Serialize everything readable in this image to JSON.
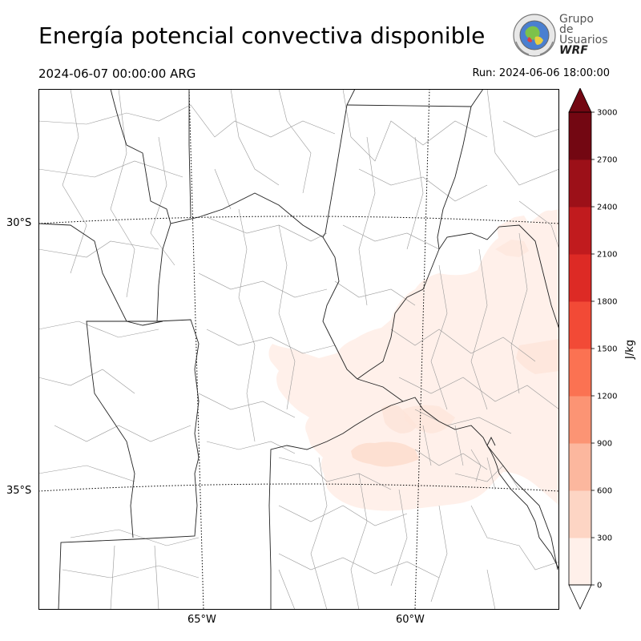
{
  "header": {
    "title": "Energía potencial convectiva disponible",
    "valid_time": "2024-06-07 00:00:00 ARG",
    "run_time": "Run: 2024-06-06 18:00:00"
  },
  "logo": {
    "line1": "Grupo de",
    "line2": "Usuarios",
    "line3": "WRF",
    "icon": "globe-emblem-icon"
  },
  "map": {
    "lat_labels": [
      "30°S",
      "35°S"
    ],
    "lon_labels": [
      "65°W",
      "60°W"
    ],
    "field": "CAPE",
    "colors": {
      "province_border": "#333333",
      "department_border": "#999999",
      "graticule": "#000000"
    }
  },
  "colorbar": {
    "unit": "J/kg",
    "ticks": [
      "0",
      "300",
      "600",
      "900",
      "1200",
      "1500",
      "1800",
      "2100",
      "2400",
      "2700",
      "3000"
    ],
    "colors": [
      "#fff0ea",
      "#fdd5c4",
      "#fcb79e",
      "#fc9474",
      "#fb7252",
      "#f24a36",
      "#dd2a25",
      "#c11b1e",
      "#9c1018",
      "#730712"
    ],
    "extend": "both"
  }
}
